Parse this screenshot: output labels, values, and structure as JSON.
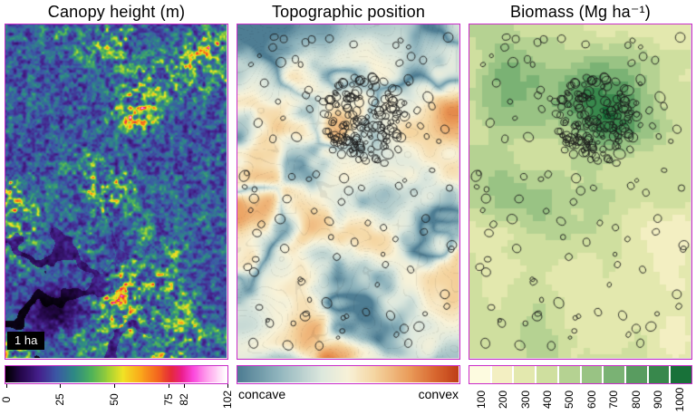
{
  "figure": {
    "border_color": "#c92bc9",
    "background": "#ffffff"
  },
  "panels": [
    {
      "id": "canopy-height",
      "title": "Canopy height (m)",
      "scale_label": "1 ha",
      "colorbar": {
        "type": "gradient",
        "min": 0,
        "max": 102,
        "ticks": [
          "0",
          "25",
          "50",
          "75",
          "82",
          "102"
        ],
        "tick_values": [
          0,
          25,
          50,
          75,
          82,
          102
        ],
        "stops": [
          [
            0.0,
            "#000000"
          ],
          [
            0.07,
            "#26084d"
          ],
          [
            0.15,
            "#45208c"
          ],
          [
            0.23,
            "#3c58a6"
          ],
          [
            0.31,
            "#2e8a85"
          ],
          [
            0.39,
            "#4fb35a"
          ],
          [
            0.47,
            "#a6d334"
          ],
          [
            0.53,
            "#f2e426"
          ],
          [
            0.61,
            "#fbaa1b"
          ],
          [
            0.69,
            "#f4661f"
          ],
          [
            0.75,
            "#e62b3a"
          ],
          [
            0.8,
            "#ec1e8d"
          ],
          [
            0.85,
            "#fb48dd"
          ],
          [
            0.92,
            "#ffa9ef"
          ],
          [
            1.0,
            "#ffffff"
          ]
        ]
      }
    },
    {
      "id": "topographic-position",
      "title": "Topographic position",
      "colorbar": {
        "type": "gradient",
        "left_label": "concave",
        "right_label": "convex",
        "stops": [
          [
            0.0,
            "#4e7d93"
          ],
          [
            0.18,
            "#8fb4bd"
          ],
          [
            0.38,
            "#dde8de"
          ],
          [
            0.5,
            "#f8f2d8"
          ],
          [
            0.62,
            "#f5d6a2"
          ],
          [
            0.78,
            "#ea9c5a"
          ],
          [
            0.9,
            "#d8662f"
          ],
          [
            1.0,
            "#c04018"
          ]
        ]
      }
    },
    {
      "id": "biomass",
      "title": "Biomass (Mg ha⁻¹)",
      "colorbar": {
        "type": "discrete",
        "ticks": [
          "100",
          "200",
          "300",
          "400",
          "500",
          "600",
          "700",
          "800",
          "900",
          "1000"
        ],
        "colors": [
          "#fdfbe0",
          "#f3efc2",
          "#e3e8ae",
          "#cfdf9f",
          "#b5d292",
          "#99c384",
          "#7ab274",
          "#599c60",
          "#38884c",
          "#187139"
        ]
      }
    }
  ]
}
